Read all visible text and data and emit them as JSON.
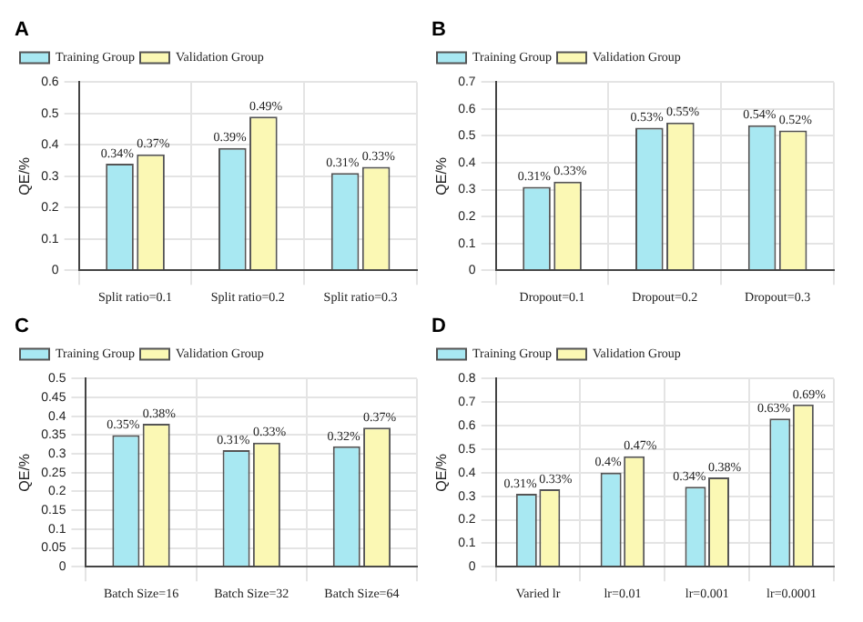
{
  "chart_data": [
    {
      "type": "bar",
      "title": "A",
      "ylabel": "QE/%",
      "categories": [
        "Split ratio=0.1",
        "Split ratio=0.2",
        "Split ratio=0.3"
      ],
      "ylim": [
        0,
        0.6
      ],
      "yticks": [
        0,
        0.1,
        0.2,
        0.3,
        0.4,
        0.5,
        0.6
      ],
      "grid": true,
      "legend": "top left",
      "series": [
        {
          "name": "Training Group",
          "color": "#a8e8f2",
          "values": [
            0.34,
            0.39,
            0.31
          ],
          "value_labels": [
            "0.34%",
            "0.39%",
            "0.31%"
          ]
        },
        {
          "name": "Validation Group",
          "color": "#fbf8b4",
          "values": [
            0.37,
            0.49,
            0.33
          ],
          "value_labels": [
            "0.37%",
            "0.49%",
            "0.33%"
          ]
        }
      ]
    },
    {
      "type": "bar",
      "title": "B",
      "ylabel": "QE/%",
      "categories": [
        "Dropout=0.1",
        "Dropout=0.2",
        "Dropout=0.3"
      ],
      "ylim": [
        0,
        0.7
      ],
      "yticks": [
        0,
        0.1,
        0.2,
        0.3,
        0.4,
        0.5,
        0.6,
        0.7
      ],
      "grid": true,
      "legend": "top left",
      "series": [
        {
          "name": "Training Group",
          "color": "#a8e8f2",
          "values": [
            0.31,
            0.53,
            0.54
          ],
          "value_labels": [
            "0.31%",
            "0.53%",
            "0.54%"
          ]
        },
        {
          "name": "Validation Group",
          "color": "#fbf8b4",
          "values": [
            0.33,
            0.55,
            0.52
          ],
          "value_labels": [
            "0.33%",
            "0.55%",
            "0.52%"
          ]
        }
      ]
    },
    {
      "type": "bar",
      "title": "C",
      "ylabel": "QE/%",
      "categories": [
        "Batch Size=16",
        "Batch Size=32",
        "Batch Size=64"
      ],
      "ylim": [
        0,
        0.5
      ],
      "yticks": [
        0,
        0.05,
        0.1,
        0.15,
        0.2,
        0.25,
        0.3,
        0.35,
        0.4,
        0.45,
        0.5
      ],
      "grid": true,
      "legend": "top left",
      "series": [
        {
          "name": "Training Group",
          "color": "#a8e8f2",
          "values": [
            0.35,
            0.31,
            0.32
          ],
          "value_labels": [
            "0.35%",
            "0.31%",
            "0.32%"
          ]
        },
        {
          "name": "Validation Group",
          "color": "#fbf8b4",
          "values": [
            0.38,
            0.33,
            0.37
          ],
          "value_labels": [
            "0.38%",
            "0.33%",
            "0.37%"
          ]
        }
      ]
    },
    {
      "type": "bar",
      "title": "D",
      "ylabel": "QE/%",
      "categories": [
        "Varied lr",
        "lr=0.01",
        "lr=0.001",
        "lr=0.0001"
      ],
      "ylim": [
        0,
        0.8
      ],
      "yticks": [
        0,
        0.1,
        0.2,
        0.3,
        0.4,
        0.5,
        0.6,
        0.7,
        0.8
      ],
      "grid": true,
      "legend": "top left",
      "series": [
        {
          "name": "Training Group",
          "color": "#a8e8f2",
          "values": [
            0.31,
            0.4,
            0.34,
            0.63
          ],
          "value_labels": [
            "0.31%",
            "0.4%",
            "0.34%",
            "0.63%"
          ]
        },
        {
          "name": "Validation Group",
          "color": "#fbf8b4",
          "values": [
            0.33,
            0.47,
            0.38,
            0.69
          ],
          "value_labels": [
            "0.33%",
            "0.47%",
            "0.38%",
            "0.69%"
          ]
        }
      ]
    }
  ]
}
